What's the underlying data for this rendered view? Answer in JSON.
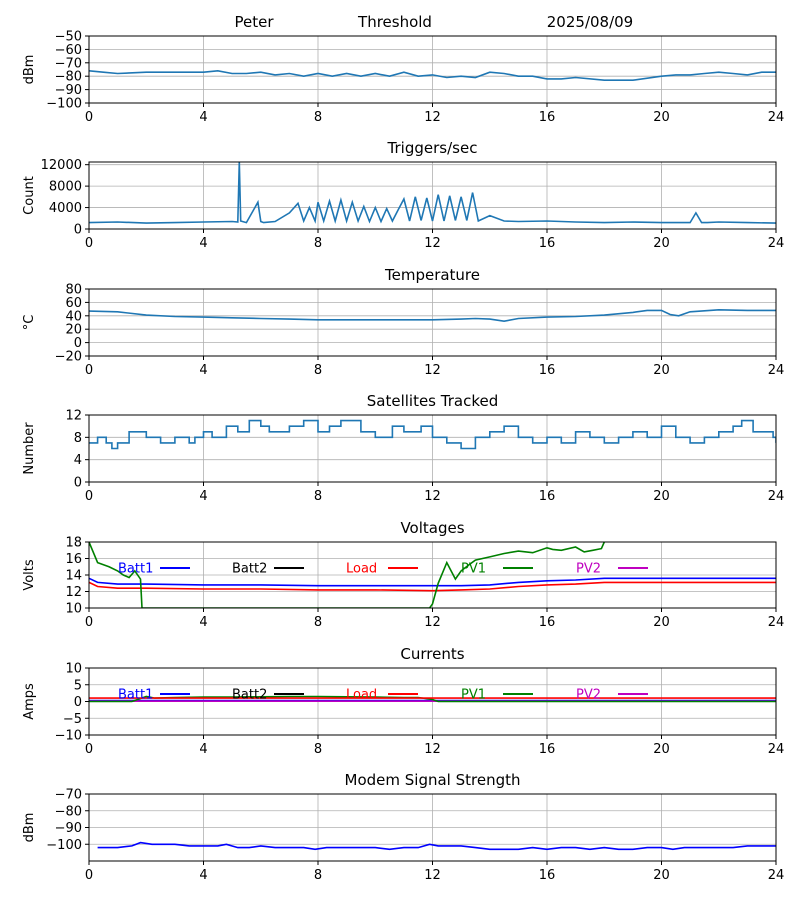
{
  "header": {
    "station": "Peter",
    "mode": "Threshold",
    "date": "2025/08/09"
  },
  "chart_data": [
    {
      "type": "line",
      "title": "",
      "ylabel": "dBm",
      "xlim": [
        0,
        24
      ],
      "ylim": [
        -100,
        -50
      ],
      "yticks": [
        -50,
        -60,
        -70,
        -80,
        -90,
        -100
      ],
      "xticks": [
        0,
        4,
        8,
        12,
        16,
        20,
        24
      ],
      "grid": true,
      "series": [
        {
          "color": "#1f77b4",
          "x": [
            0,
            0.5,
            1,
            2,
            3,
            4,
            4.5,
            5,
            5.5,
            6,
            6.5,
            7,
            7.5,
            8,
            8.5,
            9,
            9.5,
            10,
            10.5,
            11,
            11.5,
            12,
            12.5,
            13,
            13.5,
            14,
            14.5,
            15,
            15.5,
            16,
            16.5,
            17,
            18,
            19,
            20,
            20.5,
            21,
            21.5,
            22,
            22.5,
            23,
            23.5,
            24
          ],
          "y": [
            -76,
            -77,
            -78,
            -77,
            -77,
            -77,
            -76,
            -78,
            -78,
            -77,
            -79,
            -78,
            -80,
            -78,
            -80,
            -78,
            -80,
            -78,
            -80,
            -77,
            -80,
            -79,
            -81,
            -80,
            -81,
            -77,
            -78,
            -80,
            -80,
            -82,
            -82,
            -81,
            -83,
            -83,
            -80,
            -79,
            -79,
            -78,
            -77,
            -78,
            -79,
            -77,
            -77
          ]
        }
      ]
    },
    {
      "type": "line",
      "title": "Triggers/sec",
      "ylabel": "Count",
      "xlim": [
        0,
        24
      ],
      "ylim": [
        0,
        12500
      ],
      "yticks": [
        0,
        4000,
        8000,
        12000
      ],
      "xticks": [
        0,
        4,
        8,
        12,
        16,
        20,
        24
      ],
      "grid": true,
      "series": [
        {
          "color": "#1f77b4",
          "x": [
            0,
            1,
            2,
            3,
            4,
            5,
            5.2,
            5.25,
            5.3,
            5.5,
            5.9,
            6.0,
            6.1,
            6.5,
            7.0,
            7.3,
            7.5,
            7.7,
            7.9,
            8.0,
            8.2,
            8.4,
            8.6,
            8.8,
            9.0,
            9.2,
            9.4,
            9.6,
            9.8,
            10.0,
            10.2,
            10.4,
            10.6,
            10.8,
            11.0,
            11.2,
            11.4,
            11.6,
            11.8,
            12.0,
            12.2,
            12.4,
            12.6,
            12.8,
            13.0,
            13.2,
            13.4,
            13.6,
            14.0,
            14.5,
            15.0,
            16.0,
            17.0,
            18.0,
            19.0,
            20.0,
            21.0,
            21.2,
            21.4,
            21.6,
            22.0,
            23.0,
            24.0
          ],
          "y": [
            1200,
            1300,
            1100,
            1200,
            1300,
            1400,
            1300,
            12500,
            1500,
            1200,
            5000,
            1400,
            1200,
            1400,
            3000,
            4800,
            1500,
            4000,
            1500,
            5000,
            1500,
            5200,
            1500,
            5400,
            1500,
            5000,
            1500,
            4200,
            1400,
            4000,
            1400,
            3800,
            1500,
            3600,
            5600,
            1500,
            6000,
            1600,
            5800,
            1500,
            6400,
            1500,
            6200,
            1600,
            6000,
            1600,
            6800,
            1500,
            2500,
            1500,
            1400,
            1500,
            1300,
            1200,
            1300,
            1200,
            1200,
            3000,
            1200,
            1200,
            1300,
            1200,
            1100
          ]
        }
      ]
    },
    {
      "type": "line",
      "title": "Temperature",
      "ylabel": "°C",
      "xlim": [
        0,
        24
      ],
      "ylim": [
        -20,
        80
      ],
      "yticks": [
        -20,
        0,
        20,
        40,
        60,
        80
      ],
      "xticks": [
        0,
        4,
        8,
        12,
        16,
        20,
        24
      ],
      "grid": true,
      "series": [
        {
          "color": "#1f77b4",
          "x": [
            0,
            1,
            2,
            3,
            4,
            5,
            6,
            7,
            8,
            9,
            10,
            11,
            12,
            13,
            13.5,
            14,
            14.5,
            15,
            16,
            17,
            18,
            19,
            19.5,
            20,
            20.3,
            20.6,
            21,
            22,
            23,
            24
          ],
          "y": [
            47,
            46,
            41,
            39,
            38,
            37,
            36,
            35,
            34,
            34,
            34,
            34,
            34,
            35,
            36,
            35,
            32,
            36,
            38,
            39,
            41,
            45,
            48,
            48,
            42,
            40,
            46,
            49,
            48,
            48
          ]
        }
      ]
    },
    {
      "type": "line",
      "title": "Satellites Tracked",
      "ylabel": "Number",
      "xlim": [
        0,
        24
      ],
      "ylim": [
        0,
        12
      ],
      "yticks": [
        0,
        4,
        8,
        12
      ],
      "xticks": [
        0,
        4,
        8,
        12,
        16,
        20,
        24
      ],
      "grid": true,
      "step": true,
      "series": [
        {
          "color": "#1f77b4",
          "x": [
            0,
            0.3,
            0.6,
            0.8,
            1.0,
            1.4,
            2.0,
            2.5,
            3.0,
            3.5,
            3.7,
            4.0,
            4.3,
            4.8,
            5.2,
            5.6,
            6.0,
            6.3,
            7.0,
            7.5,
            8.0,
            8.4,
            8.8,
            9.5,
            10.0,
            10.6,
            11.0,
            11.6,
            12.0,
            12.5,
            13.0,
            13.5,
            14.0,
            14.5,
            15.0,
            15.5,
            16.0,
            16.5,
            17.0,
            17.5,
            18.0,
            18.5,
            19.0,
            19.5,
            20.0,
            20.5,
            21.0,
            21.5,
            22.0,
            22.5,
            22.8,
            23.2,
            23.9,
            24.0
          ],
          "y": [
            7,
            8,
            7,
            6,
            7,
            9,
            8,
            7,
            8,
            7,
            8,
            9,
            8,
            10,
            9,
            11,
            10,
            9,
            10,
            11,
            9,
            10,
            11,
            9,
            8,
            10,
            9,
            10,
            8,
            7,
            6,
            8,
            9,
            10,
            8,
            7,
            8,
            7,
            9,
            8,
            7,
            8,
            9,
            8,
            10,
            8,
            7,
            8,
            9,
            10,
            11,
            9,
            8,
            7
          ]
        }
      ]
    },
    {
      "type": "line",
      "title": "Voltages",
      "ylabel": "Volts",
      "xlim": [
        0,
        24
      ],
      "ylim": [
        10,
        18
      ],
      "yticks": [
        10,
        12,
        14,
        16,
        18
      ],
      "xticks": [
        0,
        4,
        8,
        12,
        16,
        20,
        24
      ],
      "grid": true,
      "legend": [
        "Batt1",
        "Batt2",
        "Load",
        "PV1",
        "PV2"
      ],
      "series": [
        {
          "name": "Batt1",
          "color": "#0000ff",
          "x": [
            0,
            0.3,
            1,
            2,
            4,
            6,
            8,
            10,
            12,
            13,
            14,
            15,
            16,
            17,
            18,
            20,
            22,
            24
          ],
          "y": [
            13.6,
            13.1,
            12.9,
            12.9,
            12.8,
            12.8,
            12.7,
            12.7,
            12.7,
            12.7,
            12.8,
            13.1,
            13.3,
            13.4,
            13.6,
            13.6,
            13.6,
            13.6
          ]
        },
        {
          "name": "Load",
          "color": "#ff0000",
          "x": [
            0,
            0.3,
            1,
            2,
            4,
            6,
            8,
            10,
            12,
            13,
            14,
            15,
            16,
            17,
            18,
            20,
            22,
            24
          ],
          "y": [
            13.1,
            12.6,
            12.4,
            12.4,
            12.3,
            12.3,
            12.2,
            12.2,
            12.1,
            12.2,
            12.3,
            12.6,
            12.8,
            12.9,
            13.1,
            13.1,
            13.1,
            13.1
          ]
        },
        {
          "name": "PV1",
          "color": "#008000",
          "x": [
            0,
            0.3,
            0.7,
            1.0,
            1.2,
            1.4,
            1.6,
            1.8,
            1.85,
            11.9,
            12.0,
            12.2,
            12.5,
            12.8,
            13.0,
            13.3,
            13.5,
            14.0,
            14.5,
            15.0,
            15.5,
            16.0,
            16.2,
            16.5,
            17.0,
            17.3,
            17.6,
            17.9,
            18.0
          ],
          "y": [
            18.0,
            15.5,
            15.0,
            14.5,
            14.0,
            13.7,
            14.5,
            13.5,
            10.0,
            10.0,
            10.5,
            13.0,
            15.5,
            13.5,
            14.5,
            15.3,
            15.8,
            16.2,
            16.6,
            16.9,
            16.7,
            17.3,
            17.1,
            17.0,
            17.4,
            16.8,
            17.0,
            17.2,
            18.0
          ]
        }
      ]
    },
    {
      "type": "line",
      "title": "Currents",
      "ylabel": "Amps",
      "xlim": [
        0,
        24
      ],
      "ylim": [
        -10,
        10
      ],
      "yticks": [
        -10,
        -5,
        0,
        5,
        10
      ],
      "xticks": [
        0,
        4,
        8,
        12,
        16,
        20,
        24
      ],
      "grid": true,
      "legend": [
        "Batt1",
        "Batt2",
        "Load",
        "PV1",
        "PV2"
      ],
      "series": [
        {
          "name": "Batt1",
          "color": "#0000ff",
          "x": [
            0,
            24
          ],
          "y": [
            0.3,
            0.3
          ]
        },
        {
          "name": "PV2",
          "color": "#bf00bf",
          "x": [
            0,
            24
          ],
          "y": [
            0.1,
            0.1
          ]
        },
        {
          "name": "PV1",
          "color": "#008000",
          "x": [
            0,
            1.5,
            2.0,
            2.3,
            3,
            4,
            5,
            6,
            7,
            8,
            9,
            10,
            11,
            11.5,
            12,
            12.2,
            24
          ],
          "y": [
            0,
            0,
            1.5,
            1.0,
            1.2,
            1.3,
            1.3,
            1.4,
            1.5,
            1.5,
            1.4,
            1.3,
            1.2,
            1.2,
            0.6,
            0,
            0
          ]
        },
        {
          "name": "Load",
          "color": "#ff0000",
          "x": [
            0,
            4,
            8,
            12,
            16,
            20,
            24
          ],
          "y": [
            1.0,
            1.0,
            1.0,
            1.0,
            1.0,
            1.0,
            1.0
          ]
        }
      ]
    },
    {
      "type": "line",
      "title": "Modem Signal Strength",
      "ylabel": "dBm",
      "xlim": [
        0,
        24
      ],
      "ylim": [
        -110,
        -70
      ],
      "yticks": [
        -70,
        -80,
        -90,
        -100
      ],
      "xticks": [
        0,
        4,
        8,
        12,
        16,
        20,
        24
      ],
      "grid": true,
      "series": [
        {
          "color": "#0000ff",
          "x": [
            0.3,
            1,
            1.5,
            1.8,
            2.2,
            3,
            3.5,
            4,
            4.5,
            4.8,
            5.2,
            5.6,
            6,
            6.5,
            7,
            7.5,
            7.9,
            8.3,
            9,
            9.5,
            10,
            10.5,
            11,
            11.5,
            11.9,
            12.2,
            12.6,
            13,
            13.5,
            14,
            14.5,
            15,
            15.5,
            16,
            16.5,
            17,
            17.5,
            18,
            18.5,
            19,
            19.5,
            20,
            20.4,
            20.8,
            21,
            21.5,
            22,
            22.5,
            23,
            23.5,
            24
          ],
          "y": [
            -102,
            -102,
            -101,
            -99,
            -100,
            -100,
            -101,
            -101,
            -101,
            -100,
            -102,
            -102,
            -101,
            -102,
            -102,
            -102,
            -103,
            -102,
            -102,
            -102,
            -102,
            -103,
            -102,
            -102,
            -100,
            -101,
            -101,
            -101,
            -102,
            -103,
            -103,
            -103,
            -102,
            -103,
            -102,
            -102,
            -103,
            -102,
            -103,
            -103,
            -102,
            -102,
            -103,
            -102,
            -102,
            -102,
            -102,
            -102,
            -101,
            -101,
            -101
          ]
        }
      ]
    }
  ]
}
